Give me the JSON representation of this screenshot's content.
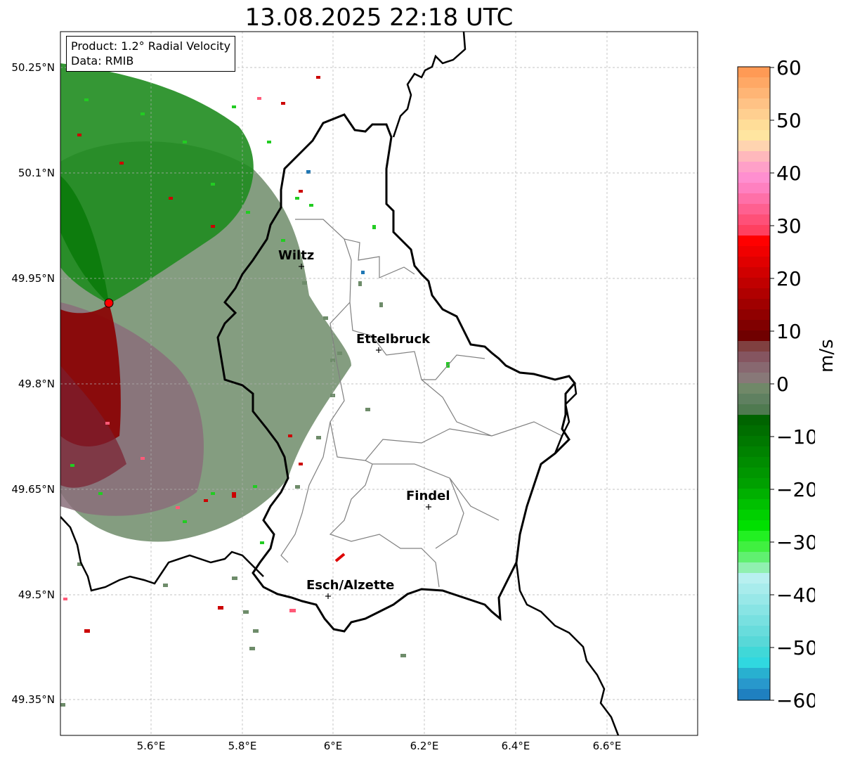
{
  "title": "13.08.2025 22:18 UTC",
  "info_box": {
    "product_line": "Product: 1.2° Radial Velocity",
    "data_line": "Data: RMIB"
  },
  "axes": {
    "lat_labels": [
      "50.25°N",
      "50.1°N",
      "49.95°N",
      "49.8°N",
      "49.65°N",
      "49.5°N",
      "49.35°N"
    ],
    "lon_labels": [
      "5.6°E",
      "5.8°E",
      "6°E",
      "6.2°E",
      "6.4°E",
      "6.6°E"
    ]
  },
  "cities": [
    {
      "name": "Wiltz"
    },
    {
      "name": "Ettelbruck"
    },
    {
      "name": "Findel"
    },
    {
      "name": "Esch/Alzette"
    }
  ],
  "colorbar": {
    "unit": "m/s",
    "ticks": [
      "60",
      "50",
      "40",
      "30",
      "20",
      "10",
      "0",
      "−10",
      "−20",
      "−30",
      "−40",
      "−50",
      "−60"
    ],
    "range": [
      -60,
      60
    ]
  },
  "colors": {
    "radar_site": "#ff0000",
    "border": "#000000",
    "canton_border": "#808080",
    "grid": "#b0b0b0"
  }
}
